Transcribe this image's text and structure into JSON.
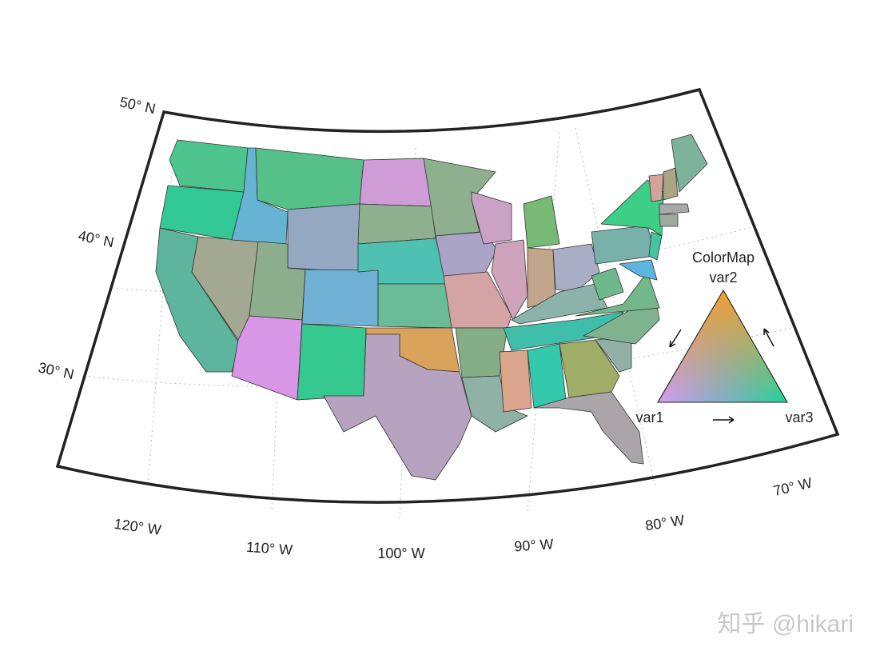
{
  "graticule": {
    "lat_labels": [
      "50° N",
      "40° N",
      "30° N"
    ],
    "lon_labels": [
      "120° W",
      "110° W",
      "100° W",
      "90° W",
      "80° W",
      "70° W"
    ]
  },
  "legend": {
    "title": "ColorMap",
    "top_label": "var2",
    "left_label": "var1",
    "right_label": "var3"
  },
  "watermark": "知乎 @hikari"
}
